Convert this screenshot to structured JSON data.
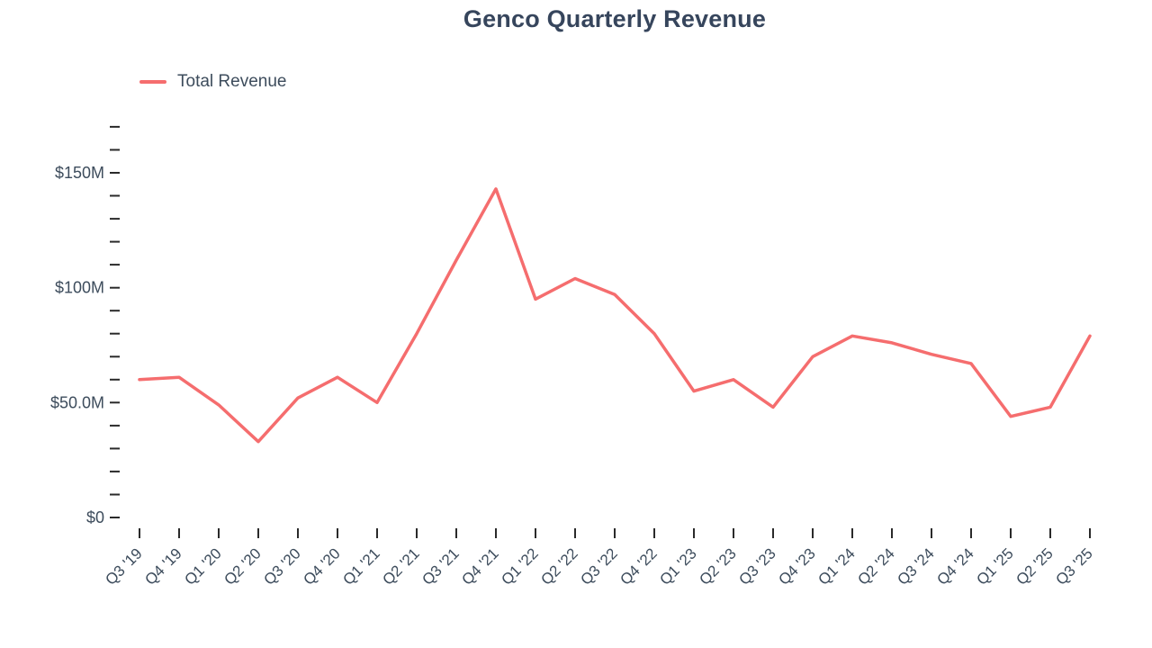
{
  "title": "Genco Quarterly Revenue",
  "legend": {
    "label": "Total Revenue"
  },
  "colors": {
    "line": "#f56d6e",
    "title_text": "#36455c",
    "axis_text": "#3d4c5c",
    "tick": "#2a2a2a",
    "background": "#ffffff"
  },
  "chart_data": {
    "type": "line",
    "title": "Genco Quarterly Revenue",
    "legend_entries": [
      "Total Revenue"
    ],
    "legend_position": "top-left",
    "grid": false,
    "xlabel": "",
    "ylabel": "",
    "categories": [
      "Q3 '19",
      "Q4 '19",
      "Q1 '20",
      "Q2 '20",
      "Q3 '20",
      "Q4 '20",
      "Q1 '21",
      "Q2 '21",
      "Q3 '21",
      "Q4 '21",
      "Q1 '22",
      "Q2 '22",
      "Q3 '22",
      "Q4 '22",
      "Q1 '23",
      "Q2 '23",
      "Q3 '23",
      "Q4 '23",
      "Q1 '24",
      "Q2 '24",
      "Q3 '24",
      "Q4 '24",
      "Q1 '25",
      "Q2 '25",
      "Q3 '25"
    ],
    "series": [
      {
        "name": "Total Revenue",
        "values_musd": [
          60,
          61,
          49,
          33,
          52,
          61,
          50,
          80,
          112,
          143,
          95,
          104,
          97,
          80,
          55,
          60,
          48,
          70,
          79,
          76,
          71,
          67,
          44,
          48,
          79
        ]
      }
    ],
    "ylim_musd": [
      0,
      170
    ],
    "y_minor_step_musd": 10,
    "y_major_ticks": [
      {
        "value": 0,
        "label": "$0"
      },
      {
        "value": 50,
        "label": "$50.0M"
      },
      {
        "value": 100,
        "label": "$100M"
      },
      {
        "value": 150,
        "label": "$150M"
      }
    ]
  }
}
